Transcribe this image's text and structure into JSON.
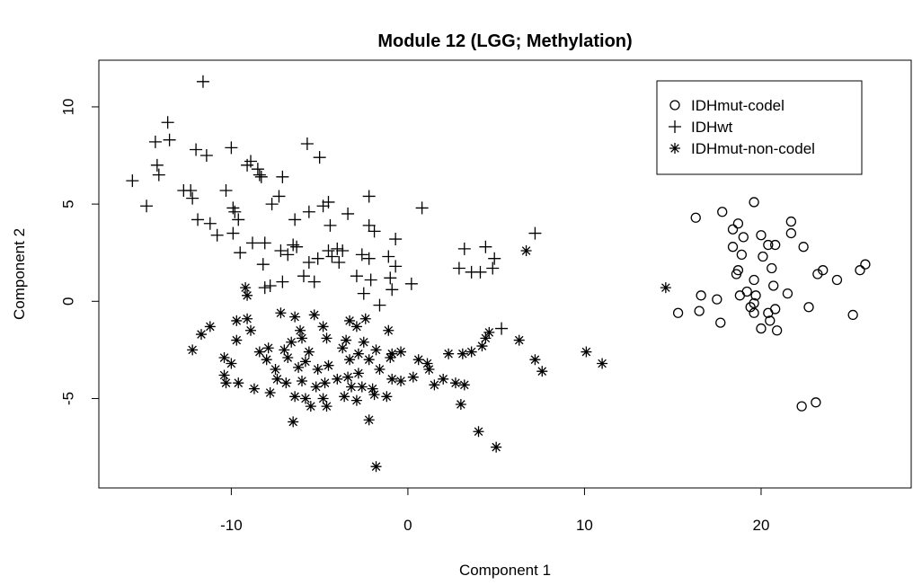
{
  "chart_data": {
    "type": "scatter",
    "title": "Module 12 (LGG; Methylation)",
    "xlabel": "Component 1",
    "ylabel": "Component 2",
    "xlim": [
      -17.5,
      28.5
    ],
    "ylim": [
      -9.6,
      12.4
    ],
    "xticks": [
      -10,
      0,
      10,
      20
    ],
    "yticks": [
      -5,
      0,
      5,
      10
    ],
    "legend_position": "top-right",
    "series": [
      {
        "name": "IDHmut-codel",
        "marker": "circle",
        "points": [
          [
            16.3,
            4.3
          ],
          [
            17.8,
            4.6
          ],
          [
            19.6,
            5.1
          ],
          [
            18.7,
            4.0
          ],
          [
            18.4,
            3.7
          ],
          [
            19.0,
            3.3
          ],
          [
            20.0,
            3.4
          ],
          [
            20.4,
            2.9
          ],
          [
            20.8,
            2.9
          ],
          [
            21.7,
            4.1
          ],
          [
            21.7,
            3.5
          ],
          [
            22.4,
            2.8
          ],
          [
            18.4,
            2.8
          ],
          [
            18.9,
            2.4
          ],
          [
            20.1,
            2.3
          ],
          [
            20.6,
            1.7
          ],
          [
            18.7,
            1.6
          ],
          [
            18.6,
            1.4
          ],
          [
            19.6,
            1.1
          ],
          [
            20.7,
            0.8
          ],
          [
            21.5,
            0.4
          ],
          [
            18.8,
            0.3
          ],
          [
            19.2,
            0.5
          ],
          [
            19.7,
            0.3
          ],
          [
            16.6,
            0.3
          ],
          [
            17.5,
            0.1
          ],
          [
            19.6,
            -0.1
          ],
          [
            19.4,
            -0.3
          ],
          [
            19.6,
            -0.6
          ],
          [
            20.4,
            -0.6
          ],
          [
            20.8,
            -0.4
          ],
          [
            22.7,
            -0.3
          ],
          [
            23.2,
            1.4
          ],
          [
            23.5,
            1.6
          ],
          [
            24.3,
            1.1
          ],
          [
            25.6,
            1.6
          ],
          [
            25.9,
            1.9
          ],
          [
            25.2,
            -0.7
          ],
          [
            15.3,
            -0.6
          ],
          [
            16.5,
            -0.5
          ],
          [
            17.7,
            -1.1
          ],
          [
            20.5,
            -1.0
          ],
          [
            20.0,
            -1.4
          ],
          [
            20.9,
            -1.5
          ],
          [
            22.3,
            -5.4
          ],
          [
            23.1,
            -5.2
          ]
        ]
      },
      {
        "name": "IDHwt",
        "marker": "plus",
        "points": [
          [
            -11.6,
            11.3
          ],
          [
            -13.6,
            9.2
          ],
          [
            -13.5,
            8.3
          ],
          [
            -14.3,
            8.2
          ],
          [
            -12.0,
            7.8
          ],
          [
            -11.4,
            7.5
          ],
          [
            -10.0,
            7.9
          ],
          [
            -9.1,
            7.0
          ],
          [
            -8.9,
            7.2
          ],
          [
            -8.4,
            6.5
          ],
          [
            -14.2,
            7.0
          ],
          [
            -14.1,
            6.5
          ],
          [
            -15.6,
            6.2
          ],
          [
            -14.8,
            4.9
          ],
          [
            -12.7,
            5.7
          ],
          [
            -12.3,
            5.7
          ],
          [
            -12.2,
            5.3
          ],
          [
            -10.3,
            5.7
          ],
          [
            -9.9,
            4.8
          ],
          [
            -9.8,
            4.6
          ],
          [
            -9.6,
            4.2
          ],
          [
            -11.9,
            4.2
          ],
          [
            -11.2,
            4.0
          ],
          [
            -10.8,
            3.4
          ],
          [
            -9.9,
            3.5
          ],
          [
            -9.5,
            2.5
          ],
          [
            -8.5,
            6.8
          ],
          [
            -8.3,
            6.4
          ],
          [
            -7.1,
            6.4
          ],
          [
            -7.3,
            5.4
          ],
          [
            -7.7,
            5.0
          ],
          [
            -5.7,
            8.1
          ],
          [
            -5.0,
            7.4
          ],
          [
            -4.5,
            5.1
          ],
          [
            -4.8,
            4.9
          ],
          [
            -5.6,
            4.6
          ],
          [
            -6.4,
            4.2
          ],
          [
            -4.4,
            3.9
          ],
          [
            -3.4,
            4.5
          ],
          [
            -2.2,
            5.4
          ],
          [
            -2.2,
            3.9
          ],
          [
            -1.9,
            3.6
          ],
          [
            -0.7,
            3.2
          ],
          [
            0.8,
            4.8
          ],
          [
            -8.8,
            3.0
          ],
          [
            -8.1,
            3.0
          ],
          [
            -7.2,
            2.6
          ],
          [
            -6.8,
            2.4
          ],
          [
            -6.5,
            2.9
          ],
          [
            -6.3,
            2.8
          ],
          [
            -5.6,
            2.0
          ],
          [
            -5.1,
            2.2
          ],
          [
            -4.5,
            2.6
          ],
          [
            -4.0,
            2.7
          ],
          [
            -3.7,
            2.6
          ],
          [
            -4.3,
            2.3
          ],
          [
            -3.9,
            2.0
          ],
          [
            -2.6,
            2.4
          ],
          [
            -2.2,
            2.2
          ],
          [
            -1.1,
            2.3
          ],
          [
            -0.7,
            1.8
          ],
          [
            -8.2,
            1.9
          ],
          [
            -5.9,
            1.3
          ],
          [
            -5.3,
            1.0
          ],
          [
            -7.1,
            1.0
          ],
          [
            -7.8,
            0.8
          ],
          [
            -8.1,
            0.7
          ],
          [
            -2.9,
            1.3
          ],
          [
            -2.1,
            1.1
          ],
          [
            -1.0,
            1.2
          ],
          [
            -0.9,
            0.6
          ],
          [
            0.2,
            0.9
          ],
          [
            -2.5,
            0.4
          ],
          [
            -1.6,
            -0.2
          ],
          [
            3.2,
            2.7
          ],
          [
            2.9,
            1.7
          ],
          [
            3.6,
            1.5
          ],
          [
            4.1,
            1.5
          ],
          [
            4.4,
            2.8
          ],
          [
            4.8,
            1.7
          ],
          [
            4.9,
            2.2
          ],
          [
            7.2,
            3.5
          ],
          [
            5.3,
            -1.4
          ]
        ]
      },
      {
        "name": "IDHmut-non-codel",
        "marker": "star",
        "points": [
          [
            6.7,
            2.6
          ],
          [
            14.6,
            0.7
          ],
          [
            -9.2,
            0.7
          ],
          [
            -9.1,
            0.3
          ],
          [
            -7.2,
            -0.6
          ],
          [
            -9.7,
            -1.0
          ],
          [
            -9.1,
            -0.9
          ],
          [
            -11.2,
            -1.3
          ],
          [
            -11.7,
            -1.7
          ],
          [
            -9.7,
            -2.0
          ],
          [
            -8.9,
            -1.5
          ],
          [
            -12.2,
            -2.5
          ],
          [
            -10.4,
            -2.9
          ],
          [
            -10.0,
            -3.2
          ],
          [
            -10.4,
            -3.8
          ],
          [
            -9.6,
            -4.2
          ],
          [
            -10.3,
            -4.2
          ],
          [
            -8.7,
            -4.5
          ],
          [
            -7.8,
            -4.7
          ],
          [
            -8.4,
            -2.6
          ],
          [
            -7.9,
            -2.4
          ],
          [
            -7.0,
            -2.5
          ],
          [
            -6.6,
            -2.1
          ],
          [
            -6.0,
            -1.9
          ],
          [
            -5.3,
            -0.7
          ],
          [
            -6.4,
            -0.8
          ],
          [
            -6.1,
            -1.5
          ],
          [
            -4.6,
            -1.9
          ],
          [
            -3.3,
            -1.0
          ],
          [
            -2.9,
            -1.3
          ],
          [
            -2.4,
            -0.9
          ],
          [
            -1.1,
            -1.5
          ],
          [
            -6.8,
            -2.9
          ],
          [
            -6.2,
            -3.4
          ],
          [
            -5.8,
            -3.1
          ],
          [
            -5.6,
            -2.6
          ],
          [
            -5.1,
            -3.5
          ],
          [
            -4.5,
            -3.3
          ],
          [
            -3.7,
            -2.4
          ],
          [
            -3.3,
            -3.0
          ],
          [
            -2.8,
            -2.7
          ],
          [
            -2.2,
            -3.0
          ],
          [
            -1.8,
            -2.5
          ],
          [
            -2.5,
            -2.1
          ],
          [
            -7.4,
            -4.0
          ],
          [
            -6.9,
            -4.2
          ],
          [
            -6.0,
            -4.1
          ],
          [
            -5.2,
            -4.4
          ],
          [
            -4.7,
            -4.2
          ],
          [
            -4.0,
            -4.0
          ],
          [
            -3.4,
            -3.9
          ],
          [
            -2.8,
            -3.7
          ],
          [
            -2.6,
            -4.4
          ],
          [
            -1.6,
            -3.5
          ],
          [
            -1.0,
            -2.9
          ],
          [
            -0.4,
            -2.6
          ],
          [
            -6.4,
            -4.9
          ],
          [
            -5.8,
            -5.0
          ],
          [
            -5.5,
            -5.4
          ],
          [
            -4.8,
            -5.0
          ],
          [
            -4.6,
            -5.4
          ],
          [
            -3.6,
            -4.9
          ],
          [
            -2.9,
            -5.1
          ],
          [
            -1.9,
            -4.8
          ],
          [
            -1.2,
            -4.9
          ],
          [
            -0.9,
            -4.0
          ],
          [
            -0.4,
            -4.1
          ],
          [
            0.3,
            -3.9
          ],
          [
            0.6,
            -3.0
          ],
          [
            1.1,
            -3.2
          ],
          [
            1.5,
            -4.3
          ],
          [
            2.0,
            -4.0
          ],
          [
            2.7,
            -4.2
          ],
          [
            3.2,
            -4.3
          ],
          [
            2.3,
            -2.7
          ],
          [
            3.1,
            -2.7
          ],
          [
            3.6,
            -2.6
          ],
          [
            4.2,
            -2.3
          ],
          [
            4.4,
            -1.9
          ],
          [
            4.6,
            -1.6
          ],
          [
            6.3,
            -2.0
          ],
          [
            7.2,
            -3.0
          ],
          [
            7.6,
            -3.6
          ],
          [
            10.1,
            -2.6
          ],
          [
            11.0,
            -3.2
          ],
          [
            -6.5,
            -6.2
          ],
          [
            -2.2,
            -6.1
          ],
          [
            4.0,
            -6.7
          ],
          [
            5.0,
            -7.5
          ],
          [
            3.0,
            -5.3
          ],
          [
            -1.8,
            -8.5
          ],
          [
            -4.8,
            -1.3
          ],
          [
            -3.5,
            -2.0
          ],
          [
            -0.9,
            -2.7
          ],
          [
            -7.5,
            -3.5
          ],
          [
            -8.0,
            -3.0
          ],
          [
            1.2,
            -3.5
          ],
          [
            -3.2,
            -4.4
          ],
          [
            -2.0,
            -4.5
          ]
        ]
      }
    ]
  }
}
